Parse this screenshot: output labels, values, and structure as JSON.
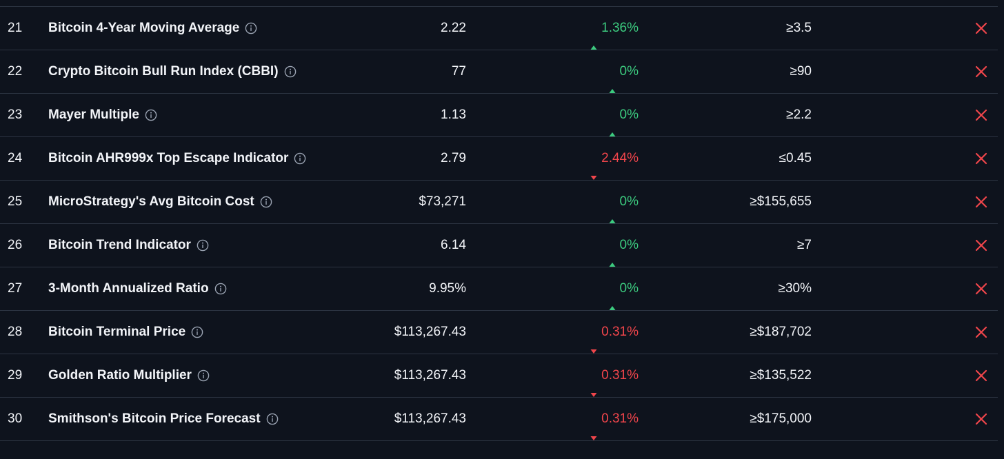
{
  "colors": {
    "background": "#0e131d",
    "divider": "#2c3442",
    "text": "#f2f4f8",
    "up": "#3ccb7f",
    "down": "#f0454b",
    "status_x": "#f0454b",
    "info_icon": "#9aa3b2"
  },
  "rows": [
    {
      "num": "21",
      "name": "Bitcoin 4-Year Moving Average",
      "value": "2.22",
      "direction": "up",
      "change": "1.36%",
      "target": "≥3.5",
      "status_icon": "x-icon"
    },
    {
      "num": "22",
      "name": "Crypto Bitcoin Bull Run Index (CBBI)",
      "value": "77",
      "direction": "up",
      "change": "0%",
      "target": "≥90",
      "status_icon": "x-icon"
    },
    {
      "num": "23",
      "name": "Mayer Multiple",
      "value": "1.13",
      "direction": "up",
      "change": "0%",
      "target": "≥2.2",
      "status_icon": "x-icon"
    },
    {
      "num": "24",
      "name": "Bitcoin AHR999x Top Escape Indicator",
      "value": "2.79",
      "direction": "down",
      "change": "2.44%",
      "target": "≤0.45",
      "status_icon": "x-icon"
    },
    {
      "num": "25",
      "name": "MicroStrategy's Avg Bitcoin Cost",
      "value": "$73,271",
      "direction": "up",
      "change": "0%",
      "target": "≥$155,655",
      "status_icon": "x-icon"
    },
    {
      "num": "26",
      "name": "Bitcoin Trend Indicator",
      "value": "6.14",
      "direction": "up",
      "change": "0%",
      "target": "≥7",
      "status_icon": "x-icon"
    },
    {
      "num": "27",
      "name": "3-Month Annualized Ratio",
      "value": "9.95%",
      "direction": "up",
      "change": "0%",
      "target": "≥30%",
      "status_icon": "x-icon"
    },
    {
      "num": "28",
      "name": "Bitcoin Terminal Price",
      "value": "$113,267.43",
      "direction": "down",
      "change": "0.31%",
      "target": "≥$187,702",
      "status_icon": "x-icon"
    },
    {
      "num": "29",
      "name": "Golden Ratio Multiplier",
      "value": "$113,267.43",
      "direction": "down",
      "change": "0.31%",
      "target": "≥$135,522",
      "status_icon": "x-icon"
    },
    {
      "num": "30",
      "name": "Smithson's Bitcoin Price Forecast",
      "value": "$113,267.43",
      "direction": "down",
      "change": "0.31%",
      "target": "≥$175,000",
      "status_icon": "x-icon"
    }
  ]
}
